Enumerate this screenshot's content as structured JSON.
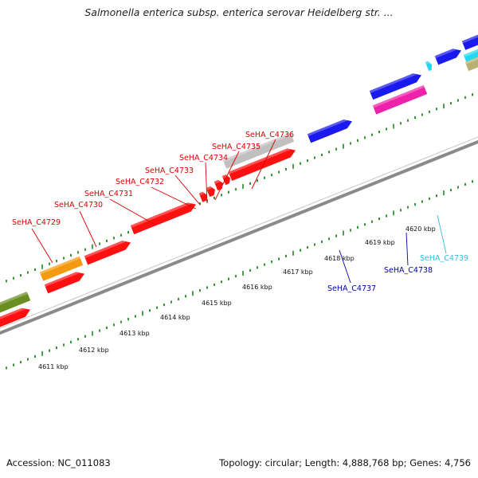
{
  "title": "Salmonella enterica subsp. enterica serovar Heidelberg str. ...",
  "footer": {
    "accession": "Accession: NC_011083",
    "info": "Topology: circular; Length: 4,888,768 bp; Genes: 4,756"
  },
  "kbp_labels": [
    "4611 kbp",
    "4612 kbp",
    "4613 kbp",
    "4614 kbp",
    "4615 kbp",
    "4616 kbp",
    "4617 kbp",
    "4618 kbp",
    "4619 kbp",
    "4620 kbp"
  ],
  "gene_labels": [
    "SeHA_C4729",
    "SeHA_C4730",
    "SeHA_C4731",
    "SeHA_C4732",
    "SeHA_C4733",
    "SeHA_C4734",
    "SeHA_C4735",
    "SeHA_C4736",
    "SeHA_C4737",
    "SeHA_C4738",
    "SeHA_C4739"
  ],
  "colors": {
    "red": "#ff1010",
    "blue": "#1a1aee",
    "magenta": "#ee22aa",
    "grey": "#c0c0c0",
    "orange": "#f39a10",
    "olive": "#6b8e23",
    "cyan": "#22d8f0",
    "khaki": "#b8b070",
    "label_red": "#dd0000",
    "label_blue": "#0000aa",
    "label_cyan": "#33bbdd",
    "tick": "#228822"
  }
}
